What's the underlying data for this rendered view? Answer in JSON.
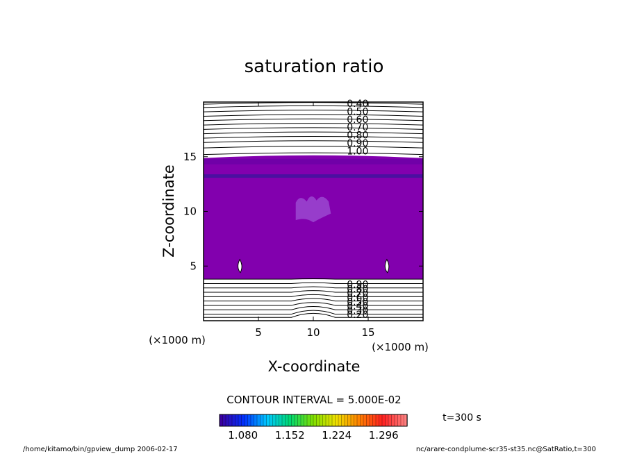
{
  "chart_data": {
    "type": "heatmap",
    "title": "saturation ratio",
    "xlabel": "X-coordinate",
    "ylabel": "Z-coordinate",
    "x_unit_note": "(×1000 m)",
    "y_unit_note": "(×1000 m)",
    "xlim": [
      0,
      20
    ],
    "ylim": [
      0,
      20
    ],
    "x_ticks": [
      5,
      10,
      15
    ],
    "y_ticks": [
      5,
      10,
      15
    ],
    "x_tick_labels": [
      "5",
      "10",
      "15"
    ],
    "y_tick_labels": [
      "5",
      "10",
      "15"
    ],
    "contour_interval_text": "CONTOUR INTERVAL = 5.000E-02",
    "time_label": "t=300 s",
    "colorbar": {
      "ticks": [
        1.08,
        1.152,
        1.224,
        1.296
      ],
      "tick_labels": [
        "1.080",
        "1.152",
        "1.224",
        "1.296"
      ],
      "range": [
        1.044,
        1.332
      ],
      "colors": [
        "#3a00a0",
        "#0030ff",
        "#00c8ff",
        "#00d870",
        "#80e000",
        "#f0e000",
        "#ff8000",
        "#ff2020",
        "#ff8080"
      ]
    },
    "upper_contour_labels": [
      "0.40",
      "0.50",
      "0.60",
      "0.70",
      "0.80",
      "0.90",
      "1.00"
    ],
    "lower_contour_labels": [
      "0.20",
      "0.30",
      "0.40",
      "0.50",
      "0.60",
      "0.70",
      "0.80",
      "0.90"
    ],
    "shaded_region_z": [
      3.8,
      15.0
    ],
    "colors": {
      "fill_main": "#8200ae",
      "fill_dark": "#4a10a0",
      "fill_light": "#9b48d0"
    }
  },
  "footer": {
    "left": "/home/kitamo/bin/gpview_dump  2006-02-17",
    "right": "nc/arare-condplume-scr35-st35.nc@SatRatio,t=300"
  }
}
